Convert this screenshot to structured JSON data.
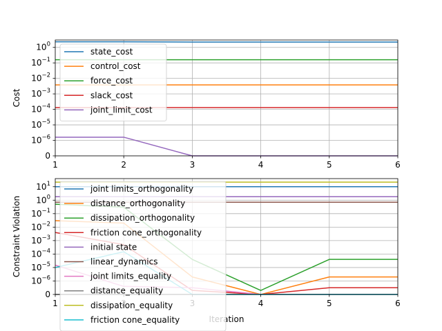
{
  "colors": {
    "C0": "#1f77b4",
    "C1": "#ff7f0e",
    "C2": "#2ca02c",
    "C3": "#d62728",
    "C4": "#9467bd",
    "C5": "#8c564b",
    "C6": "#e377c2",
    "C7": "#7f7f7f",
    "C8": "#bcbd22",
    "C9": "#17becf"
  },
  "chart_data": [
    {
      "type": "line",
      "title": "",
      "xlabel": "",
      "ylabel": "Cost",
      "yscale": "symlog",
      "linthresh": 1e-06,
      "xlim": [
        1,
        6
      ],
      "ylim": [
        0,
        3
      ],
      "grid": true,
      "legend_position": "upper-left",
      "x": [
        1,
        2,
        3,
        4,
        5,
        6
      ],
      "xticks": [
        "1",
        "2",
        "3",
        "4",
        "5",
        "6"
      ],
      "yticks": [
        0,
        1e-06,
        1e-05,
        0.0001,
        0.001,
        0.01,
        0.1,
        1
      ],
      "yticklabels": [
        {
          "base": "0",
          "exp": ""
        },
        {
          "base": "10",
          "exp": "−6"
        },
        {
          "base": "10",
          "exp": "−5"
        },
        {
          "base": "10",
          "exp": "−4"
        },
        {
          "base": "10",
          "exp": "−3"
        },
        {
          "base": "10",
          "exp": "−2"
        },
        {
          "base": "10",
          "exp": "−1"
        },
        {
          "base": "10",
          "exp": "0"
        }
      ],
      "series": [
        {
          "name": "state_cost",
          "color": "#1f77b4",
          "values": [
            2.3,
            2.3,
            2.2,
            2.2,
            2.2,
            2.2
          ]
        },
        {
          "name": "control_cost",
          "color": "#ff7f0e",
          "values": [
            0.0038,
            0.0038,
            0.0038,
            0.0038,
            0.0038,
            0.0038
          ]
        },
        {
          "name": "force_cost",
          "color": "#2ca02c",
          "values": [
            0.16,
            0.16,
            0.16,
            0.16,
            0.16,
            0.16
          ]
        },
        {
          "name": "slack_cost",
          "color": "#d62728",
          "values": [
            0.00013,
            0.00013,
            0.00013,
            0.00013,
            0.00013,
            0.00013
          ]
        },
        {
          "name": "joint_limit_cost",
          "color": "#9467bd",
          "values": [
            1.6e-06,
            1.6e-06,
            0,
            0,
            0,
            0
          ]
        }
      ]
    },
    {
      "type": "line",
      "title": "",
      "xlabel": "Iteration",
      "ylabel": "Constraint Violation",
      "yscale": "symlog",
      "linthresh": 1e-06,
      "xlim": [
        1,
        6
      ],
      "ylim": [
        0,
        40
      ],
      "grid": true,
      "legend_position": "upper-left",
      "x": [
        1,
        2,
        3,
        4,
        5,
        6
      ],
      "xticks": [
        "1",
        "2",
        "3",
        "4",
        "5",
        "6"
      ],
      "yticks": [
        0,
        1e-06,
        1e-05,
        0.0001,
        0.001,
        0.01,
        0.1,
        1,
        10
      ],
      "yticklabels": [
        {
          "base": "0",
          "exp": ""
        },
        {
          "base": "10",
          "exp": "−6"
        },
        {
          "base": "10",
          "exp": "−5"
        },
        {
          "base": "10",
          "exp": "−4"
        },
        {
          "base": "10",
          "exp": "−3"
        },
        {
          "base": "10",
          "exp": "−2"
        },
        {
          "base": "10",
          "exp": "−1"
        },
        {
          "base": "10",
          "exp": "0"
        },
        {
          "base": "10",
          "exp": "1"
        }
      ],
      "series": [
        {
          "name": "joint limits_orthogonality",
          "color": "#1f77b4",
          "values": [
            10,
            10,
            10,
            10,
            10,
            10
          ]
        },
        {
          "name": "distance_orthogonality",
          "color": "#ff7f0e",
          "values": [
            0.03,
            0.02,
            2e-06,
            0,
            2e-06,
            2e-06
          ]
        },
        {
          "name": "dissipation_orthogonality",
          "color": "#2ca02c",
          "values": [
            0.5,
            0.3,
            4e-05,
            3e-07,
            4e-05,
            4e-05
          ]
        },
        {
          "name": "friction cone_orthogonality",
          "color": "#d62728",
          "values": [
            0.004,
            0.0005,
            3e-07,
            0,
            5e-07,
            5e-07
          ]
        },
        {
          "name": "initial state",
          "color": "#9467bd",
          "values": [
            1.8,
            1.8,
            1.8,
            1.8,
            1.8,
            1.8
          ]
        },
        {
          "name": "linear_dynamics",
          "color": "#8c564b",
          "values": [
            0.7,
            0.7,
            0.7,
            0.7,
            0.7,
            0.7
          ]
        },
        {
          "name": "joint limits_equality",
          "color": "#e377c2",
          "values": [
            1.5e-05,
            6e-07,
            5e-07,
            0,
            0,
            0
          ]
        },
        {
          "name": "distance_equality",
          "color": "#7f7f7f",
          "values": [
            0,
            0,
            0,
            0,
            0,
            0
          ]
        },
        {
          "name": "dissipation_equality",
          "color": "#bcbd22",
          "values": [
            22,
            22,
            22,
            22,
            22,
            22
          ]
        },
        {
          "name": "friction cone_equality",
          "color": "#17becf",
          "values": [
            1e-05,
            0.00015,
            0,
            0,
            0,
            0
          ]
        }
      ]
    }
  ]
}
